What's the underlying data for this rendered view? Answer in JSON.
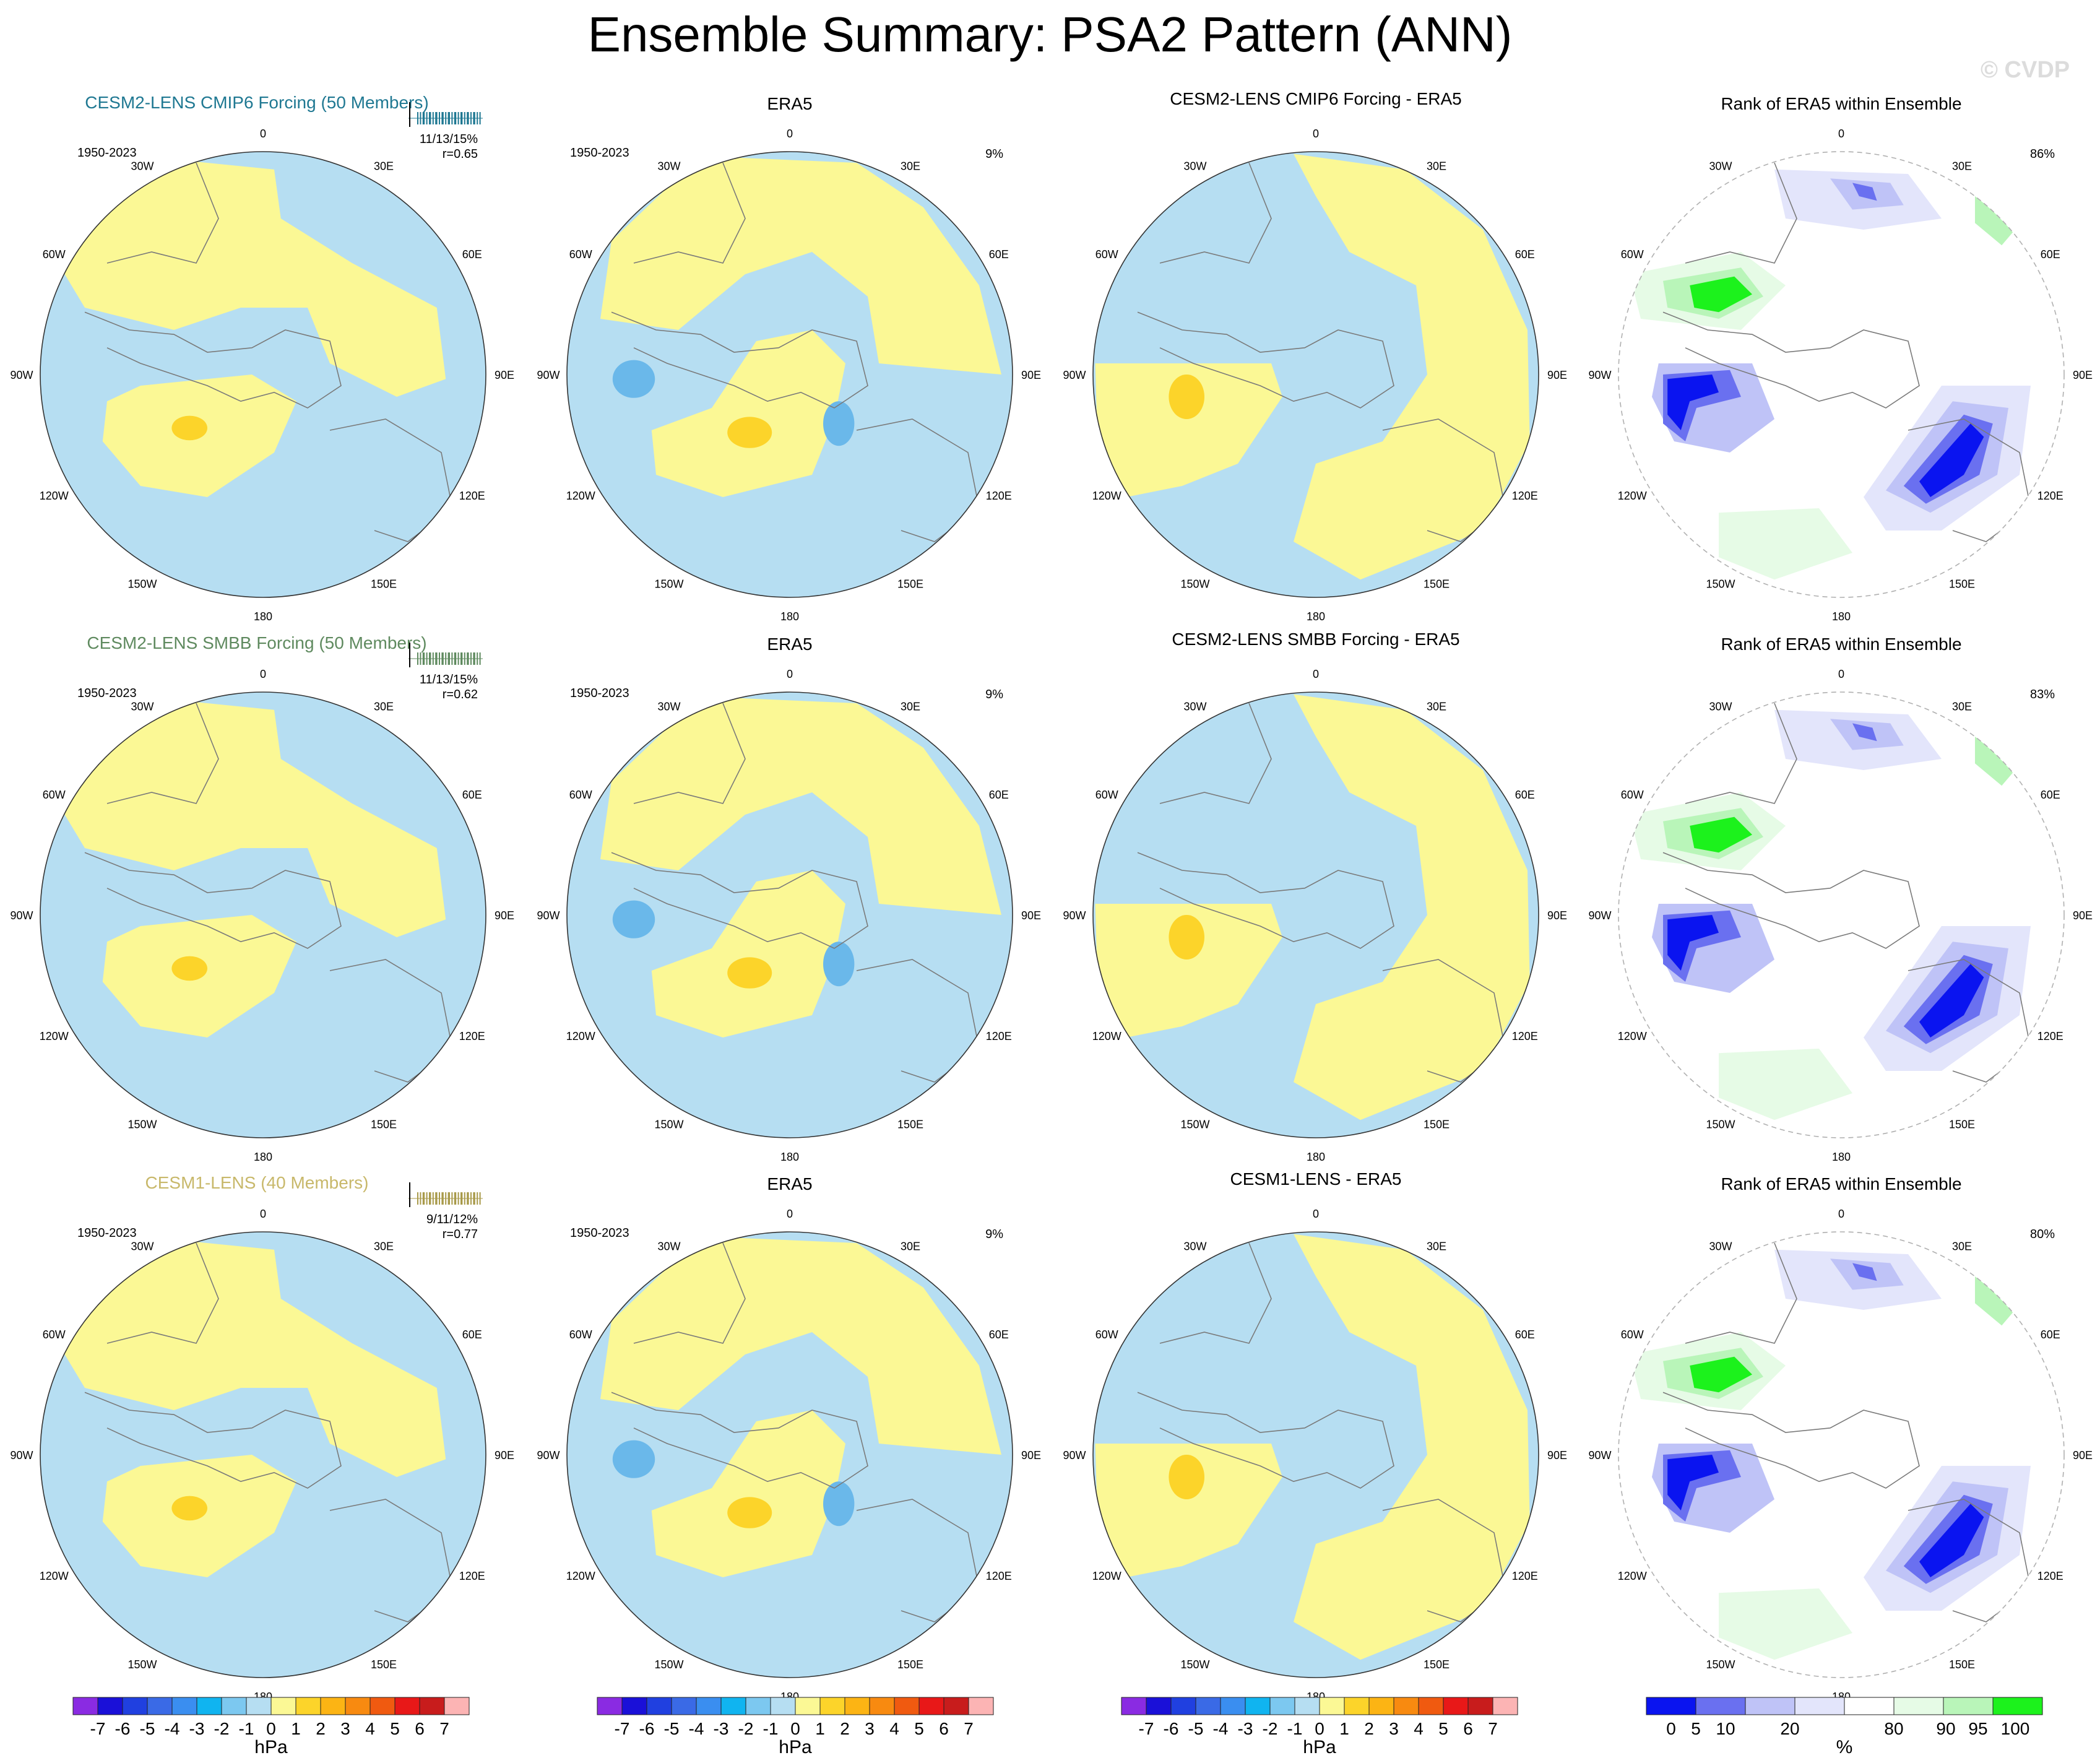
{
  "page": {
    "title": "Ensemble Summary: PSA2 Pattern (ANN)",
    "credit": "© CVDP"
  },
  "chart_data": {
    "type": "map",
    "projection": "south polar stereographic",
    "longitude_labels": [
      "0",
      "30E",
      "60E",
      "90E",
      "120E",
      "150E",
      "180",
      "150W",
      "120W",
      "90W",
      "60W",
      "30W"
    ],
    "colors": {
      "ocean_neg": "#b6def2",
      "land_pos": "#fbf895",
      "pos_core": "#fcd42a",
      "neg_core": "#6ab8ea",
      "coast": "#7a7a7a",
      "rank_deep_blue": "#0a14f0",
      "rank_med_blue": "#6a70f0",
      "rank_light_blue": "#bfc3f7",
      "rank_pale_blue": "#e3e5fb",
      "rank_pale_green": "#e6fbe6",
      "rank_light_green": "#b9f5b9",
      "rank_bright_green": "#1cf21c"
    },
    "rows": [
      {
        "model": {
          "title": "CESM2-LENS CMIP6 Forcing (50 Members)",
          "title_color": "#1f7892",
          "period": "1950-2023",
          "stats_pct": "11/13/15%",
          "r": "r=0.65",
          "glyph_color": "#1f7892"
        },
        "obs": {
          "title": "ERA5",
          "period": "1950-2023",
          "pct": "9%"
        },
        "diff": {
          "title": "CESM2-LENS CMIP6 Forcing - ERA5"
        },
        "rank": {
          "title": "Rank of ERA5 within Ensemble",
          "pct": "86%"
        }
      },
      {
        "model": {
          "title": "CESM2-LENS SMBB Forcing (50 Members)",
          "title_color": "#5f8a5f",
          "period": "1950-2023",
          "stats_pct": "11/13/15%",
          "r": "r=0.62",
          "glyph_color": "#5f8a5f"
        },
        "obs": {
          "title": "ERA5",
          "period": "1950-2023",
          "pct": "9%"
        },
        "diff": {
          "title": "CESM2-LENS SMBB Forcing - ERA5"
        },
        "rank": {
          "title": "Rank of ERA5 within Ensemble",
          "pct": "83%"
        }
      },
      {
        "model": {
          "title": "CESM1-LENS (40 Members)",
          "title_color": "#c8b86a",
          "period": "1950-2023",
          "stats_pct": "9/11/12%",
          "r": "r=0.77",
          "glyph_color": "#a89a4a"
        },
        "obs": {
          "title": "ERA5",
          "period": "1950-2023",
          "pct": "9%"
        },
        "diff": {
          "title": "CESM1-LENS - ERA5"
        },
        "rank": {
          "title": "Rank of ERA5 within Ensemble",
          "pct": "80%"
        }
      }
    ],
    "colorbar_hpa": {
      "units": "hPa",
      "tick_labels": [
        "-7",
        "-6",
        "-5",
        "-4",
        "-3",
        "-2",
        "-1",
        "0",
        "1",
        "2",
        "3",
        "4",
        "5",
        "6",
        "7"
      ],
      "colors": [
        "#8a2be2",
        "#1a10d8",
        "#2040e0",
        "#3a6ae6",
        "#3a8ef0",
        "#10b4f0",
        "#7cc8f0",
        "#b6def2",
        "#fbf895",
        "#fcd42a",
        "#fcb414",
        "#f88a10",
        "#f05a10",
        "#e81818",
        "#c81c1c",
        "#fcb4b4"
      ]
    },
    "colorbar_rank": {
      "units": "%",
      "tick_labels": [
        "0",
        "5",
        "10",
        "20",
        "80",
        "90",
        "95",
        "100"
      ],
      "colors": [
        "#0a14f0",
        "#6a70f0",
        "#bfc3f7",
        "#e3e5fb",
        "#ffffff",
        "#e6fbe6",
        "#b9f5b9",
        "#1cf21c"
      ]
    }
  }
}
